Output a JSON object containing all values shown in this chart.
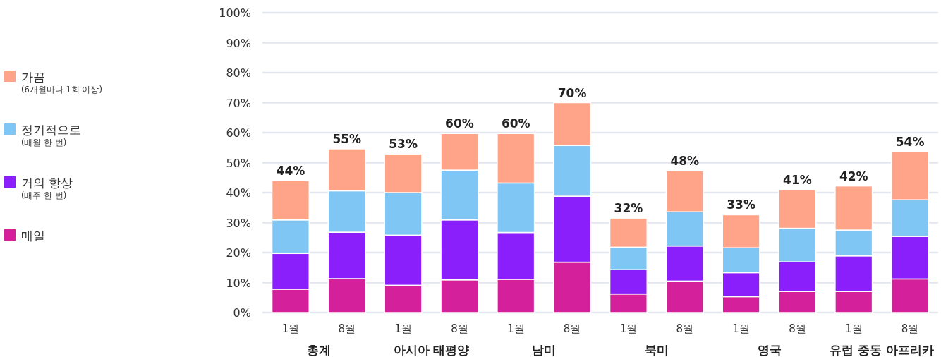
{
  "chart_data": {
    "type": "bar",
    "stacked": true,
    "categories": [
      "1월",
      "8월",
      "1월",
      "8월",
      "1월",
      "8월",
      "1월",
      "8월",
      "1월",
      "8월",
      "1월",
      "8월"
    ],
    "annotations": [
      "총계",
      "아시아 태평양",
      "남미",
      "북미",
      "영국",
      "유럽 중동 아프리카"
    ],
    "series": [
      {
        "name": "매일",
        "color": "#d4209a",
        "values": [
          7.8,
          11.3,
          9.1,
          10.9,
          11.1,
          16.8,
          6.2,
          10.5,
          5.3,
          7.0,
          7.0,
          11.2
        ]
      },
      {
        "name": "거의 항상\n(매주 한 번)",
        "color": "#8a1ffc",
        "values": [
          11.9,
          15.5,
          16.7,
          20.0,
          15.6,
          22.0,
          8.1,
          11.7,
          8.0,
          9.9,
          11.9,
          14.2
        ]
      },
      {
        "name": "정기적으로\n(매월 한 번)",
        "color": "#80c6f4",
        "values": [
          11.2,
          13.8,
          14.2,
          16.6,
          16.5,
          16.9,
          7.5,
          11.4,
          8.3,
          11.2,
          8.6,
          12.2
        ]
      },
      {
        "name": "가끔\n(6개월마다 1회 이상)",
        "color": "#ffa489",
        "values": [
          13.1,
          14.0,
          12.9,
          12.2,
          16.5,
          14.3,
          9.7,
          13.7,
          11.0,
          12.9,
          14.7,
          16.0
        ]
      }
    ],
    "totals": [
      "44%",
      "55%",
      "53%",
      "60%",
      "60%",
      "70%",
      "32%",
      "48%",
      "33%",
      "41%",
      "42%",
      "54%"
    ],
    "ylim": [
      0,
      100
    ],
    "yticks": [
      {
        "value": 0,
        "label": "0%"
      },
      {
        "value": 10,
        "label": "10%"
      },
      {
        "value": 20,
        "label": "20%"
      },
      {
        "value": 30,
        "label": "30%"
      },
      {
        "value": 40,
        "label": "40%"
      },
      {
        "value": 50,
        "label": "50%"
      },
      {
        "value": 60,
        "label": "60%"
      },
      {
        "value": 70,
        "label": "70%"
      },
      {
        "value": 80,
        "label": "80%"
      },
      {
        "value": 90,
        "label": "90%"
      },
      {
        "value": 100,
        "label": "100%"
      }
    ],
    "grid": "y",
    "legend": "left"
  }
}
